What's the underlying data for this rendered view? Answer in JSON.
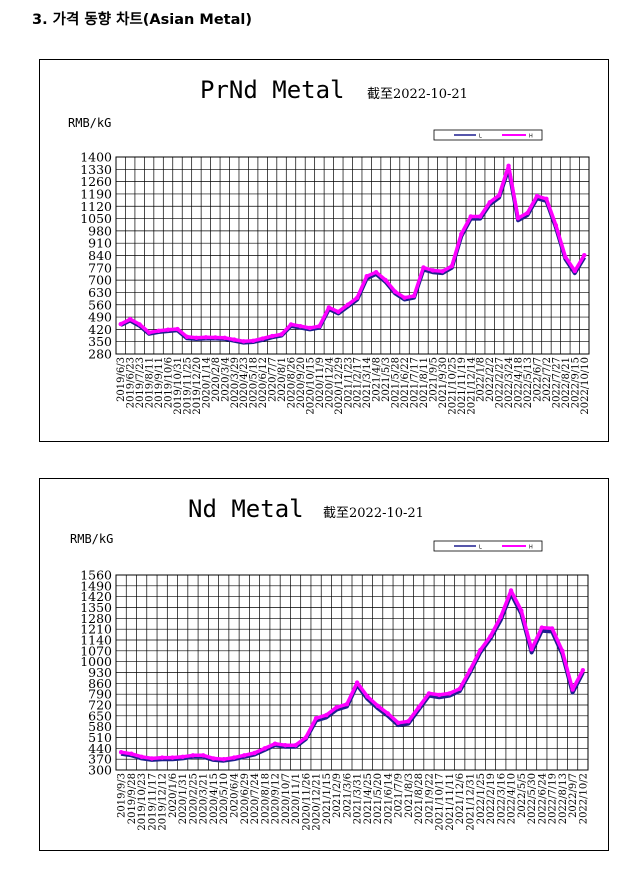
{
  "page": {
    "heading": "3. 가격 동향 차트(Asian Metal)"
  },
  "colors": {
    "line_primary": "#1f1f8f",
    "line_secondary": "#ff00ff",
    "grid": "#000000"
  },
  "chart_data": [
    {
      "type": "line",
      "title": "PrNd Metal",
      "subtitle": "截至2022-10-21",
      "ylabel": "RMB/kG",
      "xlabel": "",
      "ylim": [
        280,
        1400
      ],
      "yticks": [
        280,
        350,
        420,
        490,
        560,
        630,
        700,
        770,
        840,
        910,
        980,
        1050,
        1120,
        1190,
        1260,
        1330,
        1400
      ],
      "grid": true,
      "legend_position": "top-right",
      "legend": [
        "L",
        "H"
      ],
      "categories": [
        "2019/6/3",
        "2019/6/23",
        "2019/7/23",
        "2019/8/11",
        "2019/9/11",
        "2019/10/6",
        "2019/10/31",
        "2019/11/25",
        "2019/12/20",
        "2020/1/14",
        "2020/2/8",
        "2020/3/4",
        "2020/3/29",
        "2020/4/23",
        "2020/5/18",
        "2020/6/12",
        "2020/7/7",
        "2020/8/1",
        "2020/8/26",
        "2020/9/20",
        "2020/10/15",
        "2020/11/9",
        "2020/12/4",
        "2020/12/29",
        "2021/1/23",
        "2021/2/17",
        "2021/3/14",
        "2021/4/8",
        "2021/5/3",
        "2021/5/28",
        "2021/6/22",
        "2021/7/17",
        "2021/8/11",
        "2021/9/5",
        "2021/9/30",
        "2021/10/25",
        "2021/11/19",
        "2021/12/14",
        "2022/1/8",
        "2022/2/2",
        "2022/2/27",
        "2022/3/24",
        "2022/4/18",
        "2022/5/13",
        "2022/6/7",
        "2022/7/2",
        "2022/7/27",
        "2022/8/21",
        "2022/9/15",
        "2022/10/10"
      ],
      "series": [
        {
          "name": "L",
          "values": [
            445,
            470,
            440,
            395,
            405,
            410,
            415,
            370,
            365,
            368,
            368,
            366,
            355,
            345,
            348,
            360,
            375,
            385,
            440,
            430,
            420,
            430,
            535,
            510,
            550,
            590,
            710,
            735,
            690,
            625,
            590,
            600,
            760,
            745,
            740,
            770,
            950,
            1050,
            1050,
            1130,
            1170,
            1335,
            1040,
            1070,
            1165,
            1150,
            1000,
            820,
            740,
            830
          ]
        },
        {
          "name": "H",
          "values": [
            450,
            478,
            448,
            402,
            412,
            418,
            422,
            378,
            372,
            375,
            374,
            372,
            362,
            352,
            355,
            368,
            382,
            392,
            448,
            438,
            428,
            438,
            545,
            520,
            560,
            600,
            722,
            745,
            700,
            635,
            600,
            610,
            772,
            755,
            750,
            780,
            962,
            1062,
            1062,
            1142,
            1182,
            1350,
            1052,
            1082,
            1178,
            1162,
            1012,
            832,
            752,
            842
          ]
        }
      ]
    },
    {
      "type": "line",
      "title": "Nd Metal",
      "subtitle": "截至2022-10-21",
      "ylabel": "RMB/kG",
      "xlabel": "",
      "ylim": [
        300,
        1560
      ],
      "yticks": [
        300,
        370,
        440,
        510,
        580,
        650,
        720,
        790,
        860,
        930,
        1000,
        1070,
        1140,
        1210,
        1280,
        1350,
        1420,
        1490,
        1560
      ],
      "grid": true,
      "legend_position": "top-right",
      "legend": [
        "L",
        "H"
      ],
      "categories": [
        "2019/9/3",
        "2019/9/28",
        "2019/10/23",
        "2019/11/17",
        "2019/12/12",
        "2020/1/6",
        "2020/1/31",
        "2020/2/25",
        "2020/3/21",
        "2020/4/15",
        "2020/5/10",
        "2020/6/4",
        "2020/6/29",
        "2020/7/24",
        "2020/8/18",
        "2020/9/12",
        "2020/10/7",
        "2020/11/1",
        "2020/11/26",
        "2020/12/21",
        "2021/1/15",
        "2021/2/9",
        "2021/3/6",
        "2021/3/31",
        "2021/4/25",
        "2021/5/20",
        "2021/6/14",
        "2021/7/9",
        "2021/8/3",
        "2021/8/28",
        "2021/9/22",
        "2021/10/17",
        "2021/11/11",
        "2021/12/6",
        "2021/12/31",
        "2022/1/25",
        "2022/2/19",
        "2022/3/16",
        "2022/4/10",
        "2022/5/5",
        "2022/5/30",
        "2022/6/24",
        "2022/7/19",
        "2022/8/13",
        "2022/9/7",
        "2022/10/2"
      ],
      "series": [
        {
          "name": "L",
          "values": [
            405,
            395,
            375,
            365,
            370,
            370,
            375,
            385,
            385,
            365,
            360,
            370,
            385,
            400,
            430,
            460,
            450,
            450,
            500,
            620,
            640,
            690,
            710,
            850,
            760,
            700,
            650,
            590,
            600,
            690,
            780,
            770,
            780,
            810,
            930,
            1060,
            1150,
            1270,
            1440,
            1310,
            1060,
            1200,
            1195,
            1050,
            800,
            930
          ]
        },
        {
          "name": "H",
          "values": [
            415,
            405,
            385,
            375,
            380,
            380,
            385,
            395,
            395,
            375,
            370,
            380,
            395,
            410,
            440,
            470,
            460,
            460,
            510,
            635,
            655,
            705,
            725,
            865,
            775,
            715,
            665,
            605,
            615,
            705,
            795,
            785,
            795,
            825,
            945,
            1075,
            1165,
            1290,
            1460,
            1330,
            1080,
            1220,
            1215,
            1070,
            820,
            945
          ]
        }
      ]
    }
  ]
}
